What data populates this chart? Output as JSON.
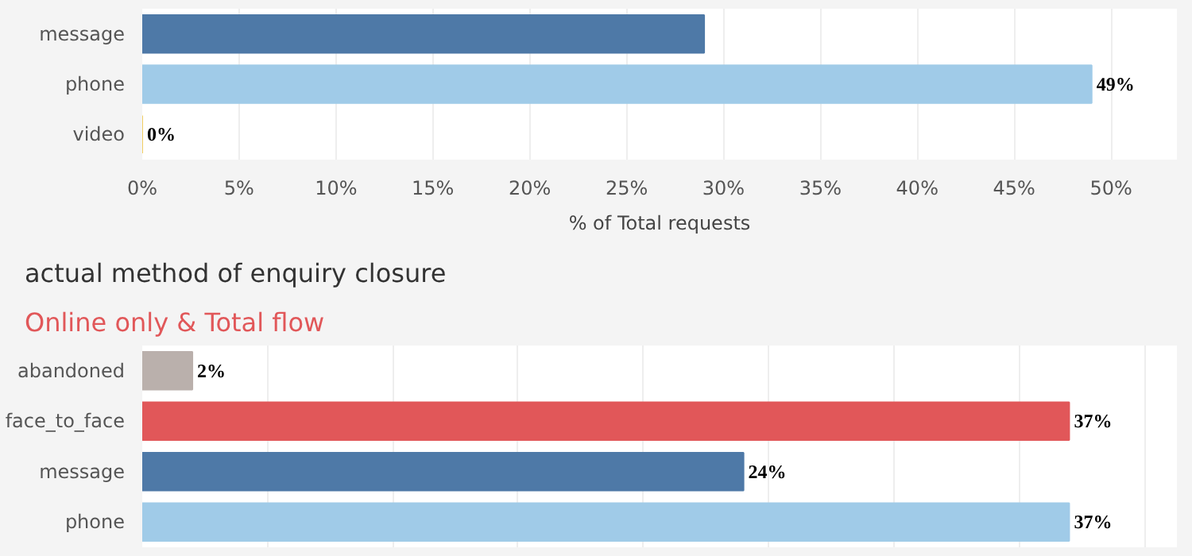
{
  "chart_data": [
    {
      "type": "bar",
      "orientation": "horizontal",
      "xlabel": "% of Total requests",
      "categories": [
        "message",
        "phone",
        "video"
      ],
      "values": [
        29,
        49,
        0
      ],
      "colors": [
        "#4e79a7",
        "#a0cbe8",
        "#f1ce63"
      ],
      "value_labels": [
        null,
        "49%",
        "0%"
      ],
      "xlim": [
        0,
        53.4
      ],
      "xticks": [
        {
          "value": 0,
          "label": "0%"
        },
        {
          "value": 5,
          "label": "5%"
        },
        {
          "value": 10,
          "label": "10%"
        },
        {
          "value": 15,
          "label": "15%"
        },
        {
          "value": 20,
          "label": "20%"
        },
        {
          "value": 25,
          "label": "25%"
        },
        {
          "value": 30,
          "label": "30%"
        },
        {
          "value": 35,
          "label": "35%"
        },
        {
          "value": 40,
          "label": "40%"
        },
        {
          "value": 45,
          "label": "45%"
        },
        {
          "value": 50,
          "label": "50%"
        }
      ],
      "grid": "x"
    },
    {
      "type": "bar",
      "orientation": "horizontal",
      "title": "actual method of enquiry closure",
      "subtitle": "Online only & Total flow",
      "categories": [
        "abandoned",
        "face_to_face",
        "message",
        "phone"
      ],
      "values": [
        2,
        37,
        24,
        37
      ],
      "colors": [
        "#bab0ac",
        "#e15759",
        "#4e79a7",
        "#a0cbe8"
      ],
      "value_labels": [
        "2%",
        "37%",
        "24%",
        "37%"
      ],
      "xlim": [
        0,
        41.3
      ],
      "xticks": [
        {
          "value": 0,
          "label": null
        },
        {
          "value": 5,
          "label": null
        },
        {
          "value": 10,
          "label": null
        },
        {
          "value": 15,
          "label": null
        },
        {
          "value": 20,
          "label": null
        },
        {
          "value": 25,
          "label": null
        },
        {
          "value": 30,
          "label": null
        },
        {
          "value": 35,
          "label": null
        },
        {
          "value": 40,
          "label": null
        }
      ],
      "tick_labels": "y",
      "grid": "x"
    }
  ]
}
